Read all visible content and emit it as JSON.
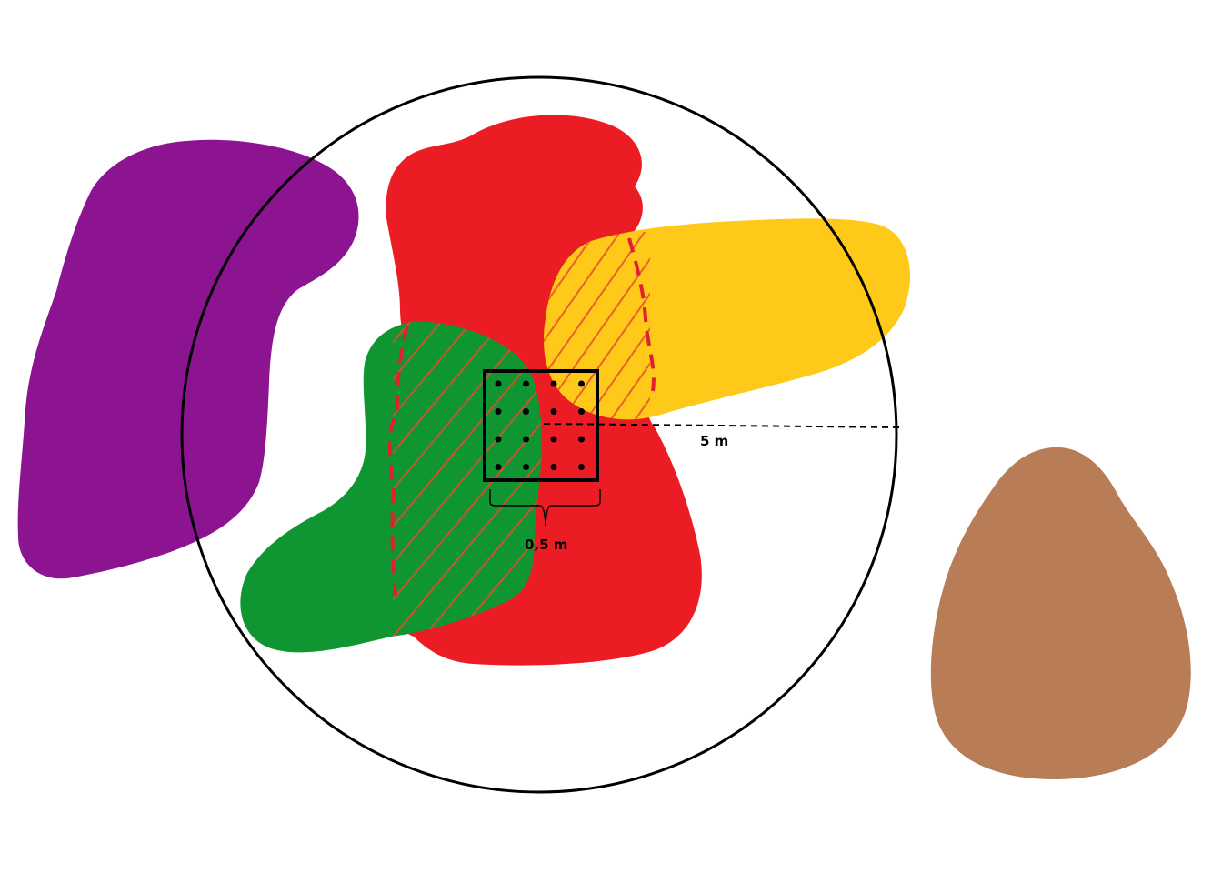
{
  "labels": {
    "radius": "5 m",
    "quadrat_side": "0,5 m"
  },
  "colors": {
    "purple_patch": "#8c1491",
    "red_patch": "#ec1c24",
    "yellow_patch": "#ffc919",
    "green_patch": "#0f9632",
    "brown_patch": "#b87c56",
    "hatch_stroke": "#e85a2a",
    "dashed_boundary": "#e02030",
    "outline": "#000000"
  },
  "quadrat_dots": {
    "rows": 4,
    "cols": 4
  }
}
